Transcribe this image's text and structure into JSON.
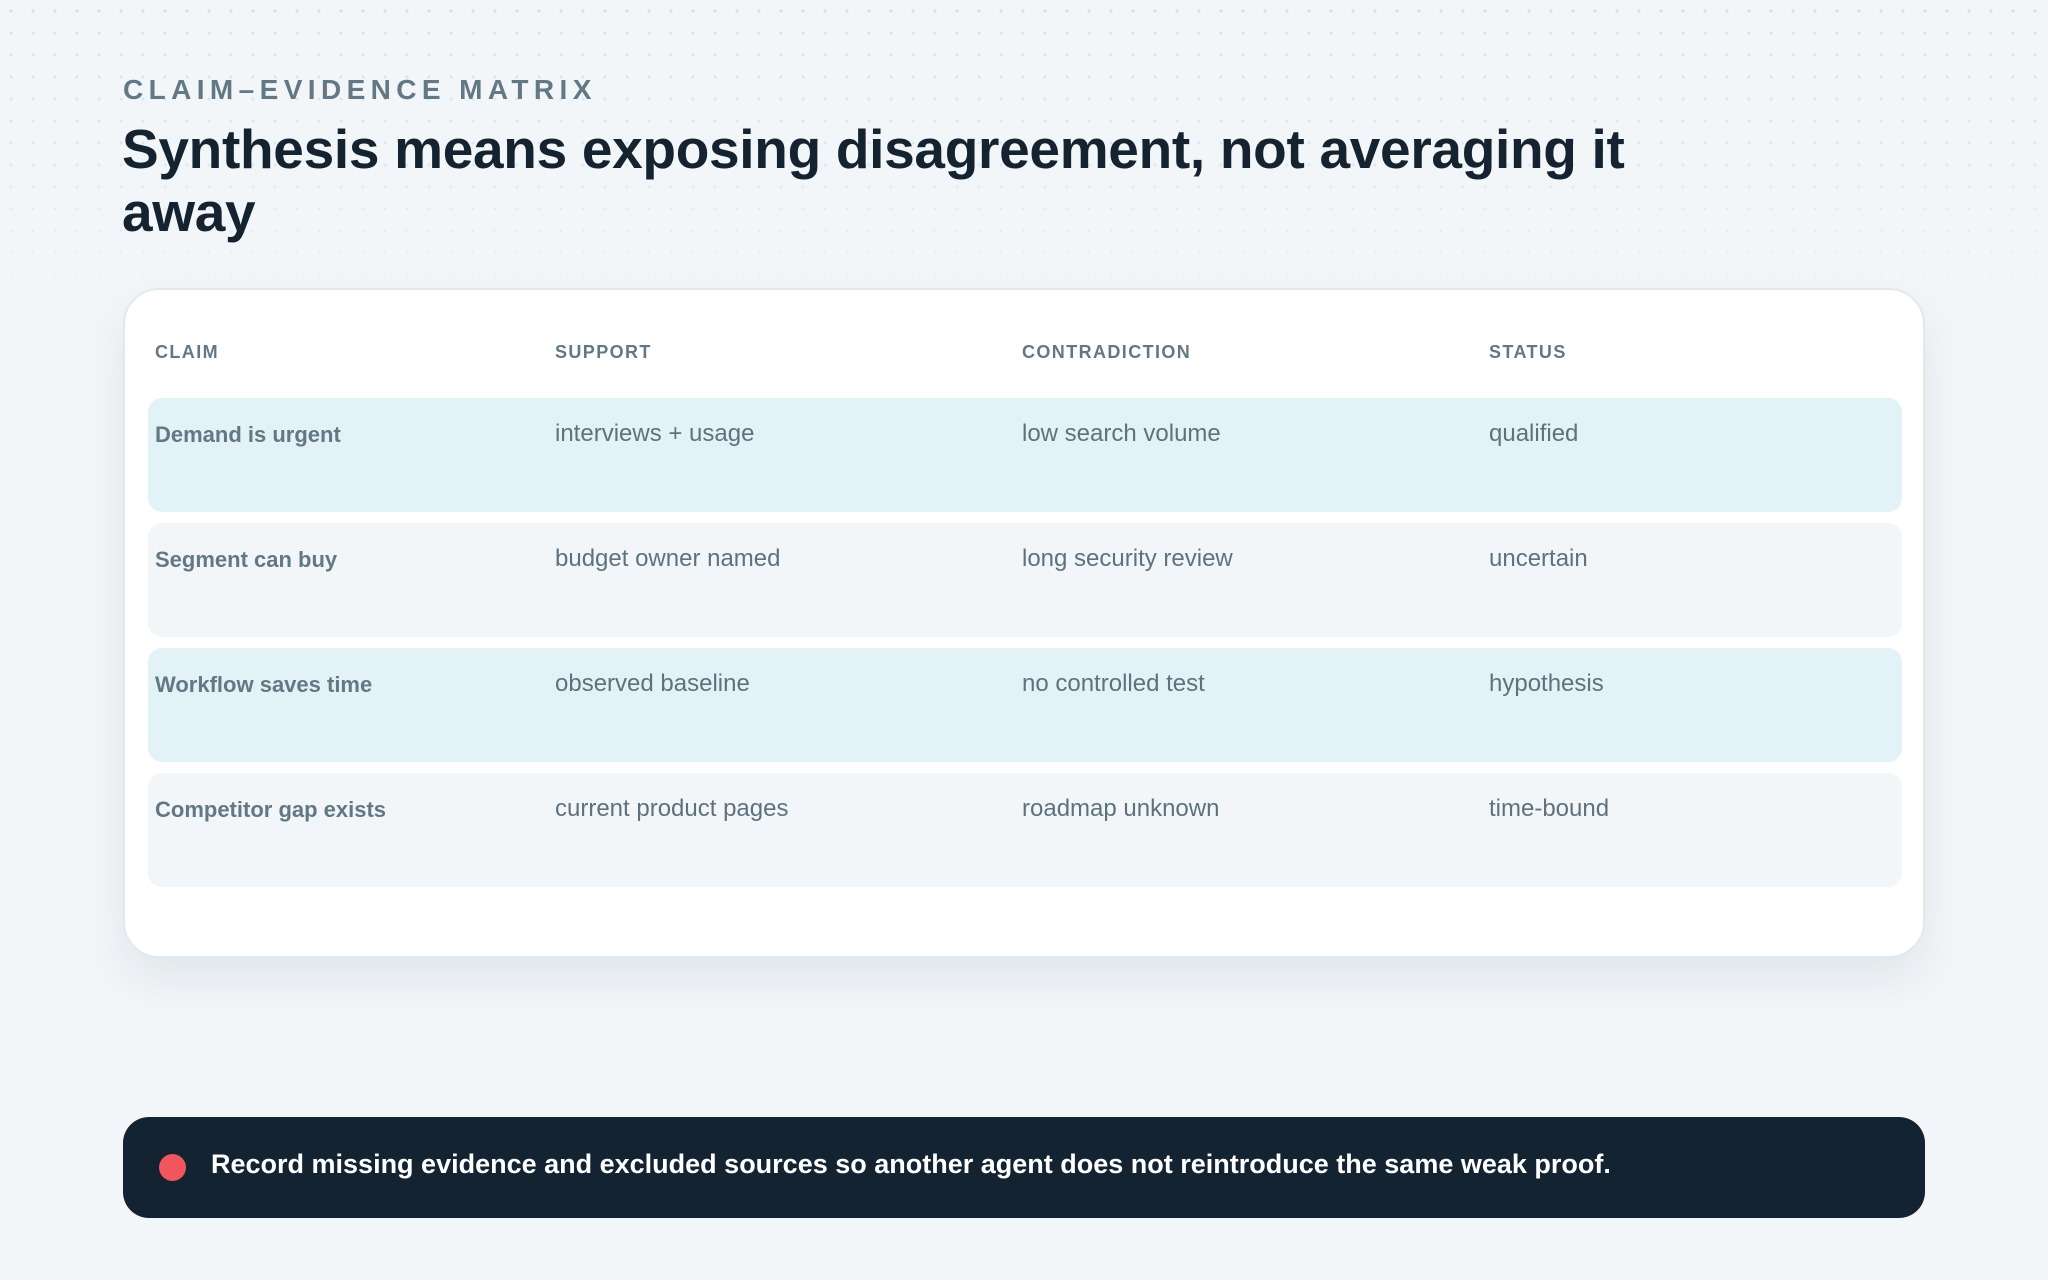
{
  "header": {
    "eyebrow": "CLAIM–EVIDENCE MATRIX",
    "title": "Synthesis means exposing disagreement, not averaging it away"
  },
  "table": {
    "columns": [
      "CLAIM",
      "SUPPORT",
      "CONTRADICTION",
      "STATUS"
    ],
    "rows": [
      {
        "claim": "Demand is urgent",
        "support": "interviews + usage",
        "contradiction": "low search volume",
        "status": "qualified"
      },
      {
        "claim": "Segment can buy",
        "support": "budget owner named",
        "contradiction": "long security review",
        "status": "uncertain"
      },
      {
        "claim": "Workflow saves time",
        "support": "observed baseline",
        "contradiction": "no controlled test",
        "status": "hypothesis"
      },
      {
        "claim": "Competitor gap exists",
        "support": "current product pages",
        "contradiction": "roadmap unknown",
        "status": "time-bound"
      }
    ]
  },
  "callout": {
    "text": "Record missing evidence and excluded sources so another agent does not reintroduce the same weak proof.",
    "dot_color": "#f0565c"
  },
  "colors": {
    "background": "#f2f6f9",
    "heading": "#14232f",
    "muted": "#627884",
    "row_tint": "#e3f2f6",
    "callout_bg": "#132331"
  }
}
